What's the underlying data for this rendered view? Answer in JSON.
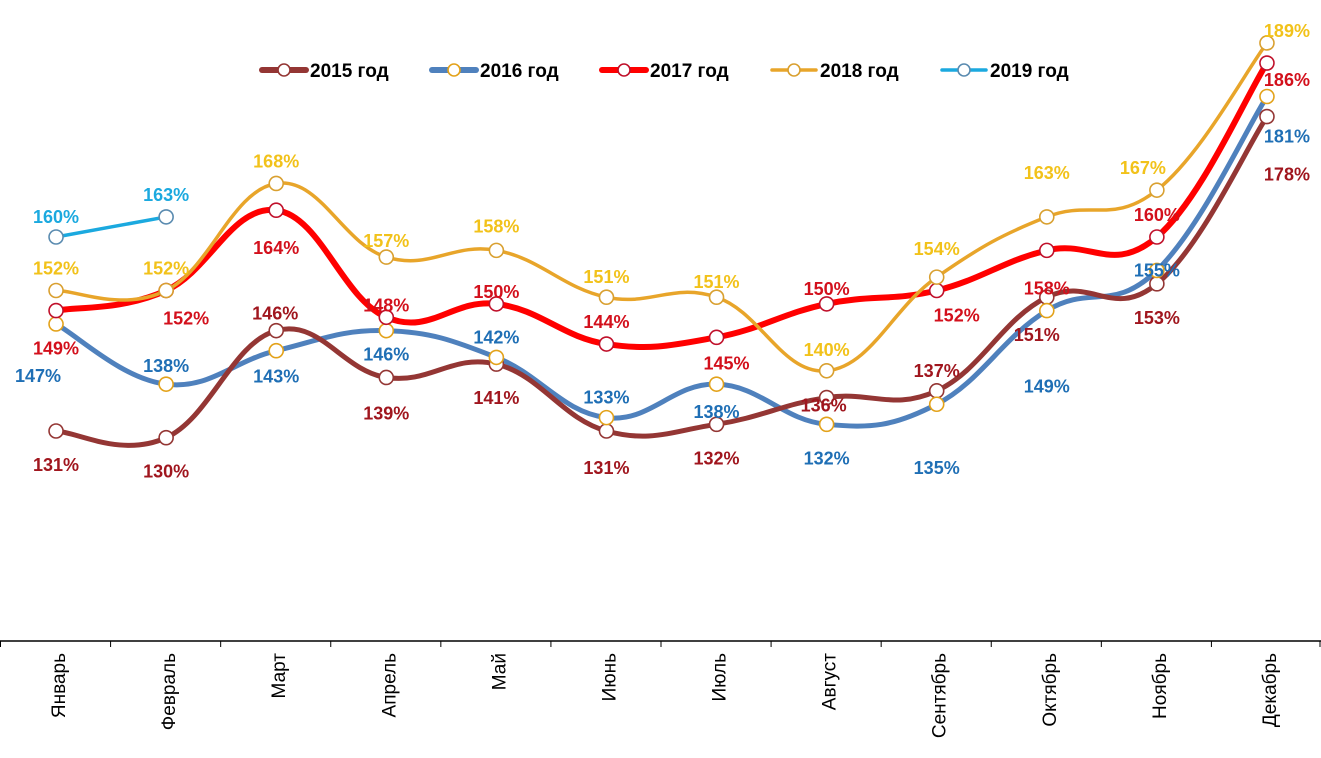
{
  "chart_data": {
    "type": "line",
    "title": "",
    "xlabel": "",
    "ylabel": "",
    "ylim": [
      100,
      195
    ],
    "grid": false,
    "y_axis_visible": false,
    "legend_position": "top",
    "value_format": "percent",
    "categories": [
      "Январь",
      "Февраль",
      "Март",
      "Апрель",
      "Май",
      "Июнь",
      "Июль",
      "Август",
      "Сентябрь",
      "Октябрь",
      "Ноябрь",
      "Декабрь"
    ],
    "series": [
      {
        "name": "2015 год",
        "color": "#943634",
        "label_color": "#A0161E",
        "marker_color": "#943634",
        "values": [
          131,
          130,
          146,
          139,
          141,
          131,
          132,
          136,
          137,
          151,
          153,
          178
        ],
        "labels": [
          "131%",
          "130%",
          "146%",
          "139%",
          "141%",
          "131%",
          "132%",
          "136%",
          "137%",
          "151%",
          "153%",
          "178%"
        ]
      },
      {
        "name": "2016 год",
        "color": "#4F81BD",
        "label_color": "#1F6FB5",
        "marker_color": "#E3A21A",
        "values": [
          147,
          138,
          143,
          146,
          142,
          133,
          138,
          132,
          135,
          149,
          155,
          181
        ],
        "labels": [
          "147%",
          "138%",
          "143%",
          "146%",
          "142%",
          "133%",
          "138%",
          "132%",
          "135%",
          "149%",
          "155%",
          "181%"
        ]
      },
      {
        "name": "2017 год",
        "color": "#FF0000",
        "label_color": "#D3101C",
        "marker_color": "#C0102A",
        "values": [
          149,
          152,
          164,
          148,
          150,
          144,
          145,
          150,
          152,
          158,
          160,
          186
        ],
        "labels": [
          "149%",
          "152%",
          "164%",
          "148%",
          "150%",
          "144%",
          "145%",
          "150%",
          "152%",
          "158%",
          "160%",
          "186%"
        ]
      },
      {
        "name": "2018 год",
        "color": "#E8A52A",
        "label_color": "#F2C21A",
        "marker_color": "#D9A030",
        "values": [
          152,
          152,
          168,
          157,
          158,
          151,
          151,
          140,
          154,
          163,
          167,
          189
        ],
        "labels": [
          "152%",
          "152%",
          "168%",
          "157%",
          "158%",
          "151%",
          "151%",
          "140%",
          "154%",
          "163%",
          "167%",
          "189%"
        ]
      },
      {
        "name": "2019 год",
        "color": "#1BA9DF",
        "label_color": "#1BA9DF",
        "marker_color": "#5A8BB0",
        "values": [
          160,
          163,
          null,
          null,
          null,
          null,
          null,
          null,
          null,
          null,
          null,
          null
        ],
        "labels": [
          "160%",
          "163%",
          null,
          null,
          null,
          null,
          null,
          null,
          null,
          null,
          null,
          null
        ]
      }
    ]
  }
}
